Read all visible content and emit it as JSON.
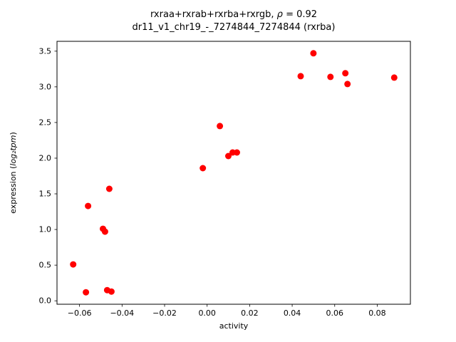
{
  "figure": {
    "title_line1_prefix": "rxraa+rxrab+rxrba+rxrgb, ",
    "title_line1_rho": "ρ",
    "title_line1_suffix": " = 0.92",
    "title_line2": "dr11_v1_chr19_-_7274844_7274844 (rxrba)"
  },
  "chart_data": {
    "type": "scatter",
    "title": "rxraa+rxrab+rxrba+rxrgb, ρ = 0.92",
    "subtitle": "dr11_v1_chr19_-_7274844_7274844 (rxrba)",
    "xlabel": "activity",
    "ylabel_prefix": "expression (",
    "ylabel_math": "log₂tpm",
    "ylabel_suffix": ")",
    "xlim": [
      -0.0706,
      0.0956
    ],
    "ylim": [
      -0.048,
      3.638
    ],
    "x_ticks": [
      -0.06,
      -0.04,
      -0.02,
      0.0,
      0.02,
      0.04,
      0.06,
      0.08
    ],
    "x_tick_labels": [
      "−0.06",
      "−0.04",
      "−0.02",
      "0.00",
      "0.02",
      "0.04",
      "0.06",
      "0.08"
    ],
    "y_ticks": [
      0.0,
      0.5,
      1.0,
      1.5,
      2.0,
      2.5,
      3.0,
      3.5
    ],
    "y_tick_labels": [
      "0.0",
      "0.5",
      "1.0",
      "1.5",
      "2.0",
      "2.5",
      "3.0",
      "3.5"
    ],
    "marker_color": "#ff0000",
    "marker_radius": 4.5,
    "grid": false,
    "legend": "none",
    "points": [
      [
        -0.063,
        0.51
      ],
      [
        -0.057,
        0.12
      ],
      [
        -0.056,
        1.33
      ],
      [
        -0.049,
        1.01
      ],
      [
        -0.048,
        0.97
      ],
      [
        -0.047,
        0.15
      ],
      [
        -0.045,
        0.13
      ],
      [
        -0.046,
        1.57
      ],
      [
        -0.002,
        1.86
      ],
      [
        0.006,
        2.45
      ],
      [
        0.01,
        2.03
      ],
      [
        0.012,
        2.08
      ],
      [
        0.014,
        2.08
      ],
      [
        0.044,
        3.15
      ],
      [
        0.05,
        3.47
      ],
      [
        0.058,
        3.14
      ],
      [
        0.065,
        3.19
      ],
      [
        0.066,
        3.04
      ],
      [
        0.088,
        3.13
      ]
    ]
  }
}
